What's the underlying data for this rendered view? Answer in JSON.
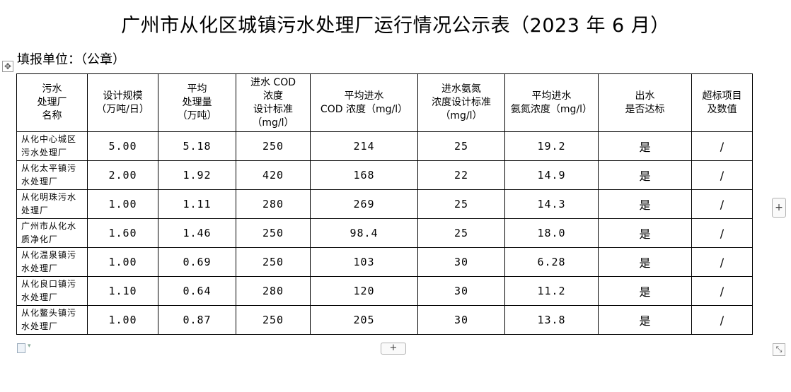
{
  "title": "广州市从化区城镇污水处理厂运行情况公示表（2023 年 6 月）",
  "unit_label": "填报单位：（公章）",
  "icons": {
    "move": "move-icon",
    "add_column": "plus-icon",
    "add_row": "plus-icon",
    "resize": "resize-icon",
    "doc": "document-icon"
  },
  "table": {
    "headers": [
      "污水\n处理厂\n名称",
      "设计规模\n（万吨/日）",
      "平均\n处理量\n（万吨）",
      "进水 COD\n浓度\n设计标准\n（mg/l）",
      "平均进水\nCOD 浓度（mg/l）",
      "进水氨氮\n浓度设计标准\n（mg/l）",
      "平均进水\n氨氮浓度（mg/l）",
      "出水\n是否达标",
      "超标项目\n及数值"
    ],
    "rows": [
      [
        "从化中心城区污水处理厂",
        "5.00",
        "5.18",
        "250",
        "214",
        "25",
        "19.2",
        "是",
        "/"
      ],
      [
        "从化太平镇污水处理厂",
        "2.00",
        "1.92",
        "420",
        "168",
        "22",
        "14.9",
        "是",
        "/"
      ],
      [
        "从化明珠污水处理厂",
        "1.00",
        "1.11",
        "280",
        "269",
        "25",
        "14.3",
        "是",
        "/"
      ],
      [
        "广州市从化水质净化厂",
        "1.60",
        "1.46",
        "250",
        "98.4",
        "25",
        "18.0",
        "是",
        "/"
      ],
      [
        "从化温泉镇污水处理厂",
        "1.00",
        "0.69",
        "250",
        "103",
        "30",
        "6.28",
        "是",
        "/"
      ],
      [
        "从化良口镇污水处理厂",
        "1.10",
        "0.64",
        "280",
        "120",
        "30",
        "11.2",
        "是",
        "/"
      ],
      [
        "从化鳌头镇污水处理厂",
        "1.00",
        "0.87",
        "250",
        "205",
        "30",
        "13.8",
        "是",
        "/"
      ]
    ]
  },
  "controls": {
    "add_column_label": "+",
    "add_row_label": "+",
    "move_label": "✥",
    "resize_label": "⤡"
  }
}
